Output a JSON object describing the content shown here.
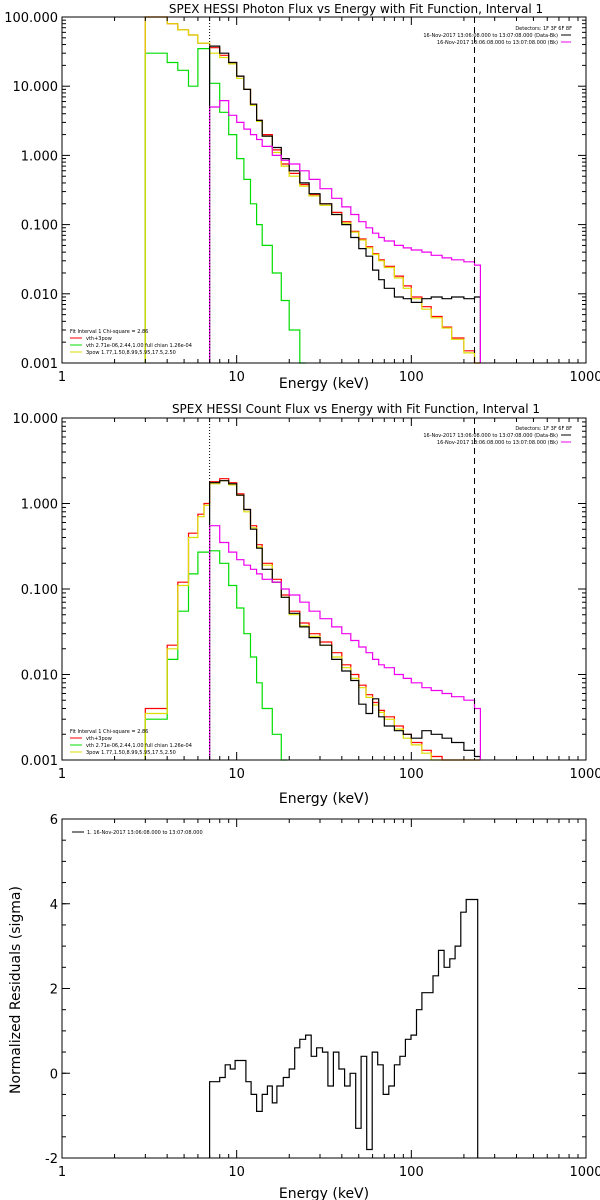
{
  "chart_data": [
    {
      "type": "line",
      "title": "SPEX HESSI Photon Flux vs Energy with Fit Function, Interval 1",
      "xlabel": "Energy (keV)",
      "ylabel": "",
      "xscale": "log",
      "yscale": "log",
      "xlim": [
        1,
        1000
      ],
      "ylim": [
        0.001,
        100
      ],
      "x_ticks": [
        "1",
        "10",
        "100",
        "1000"
      ],
      "y_ticks": [
        "0.001",
        "0.010",
        "0.100",
        "1.000",
        "10.000",
        "100.000"
      ],
      "grid": false,
      "vlines": [
        {
          "x": 7,
          "style": "dotted"
        },
        {
          "x": 230,
          "style": "dashed"
        }
      ],
      "legend_top_right": {
        "placement": "top-right",
        "lines": [
          "Detectors: 1F 3F 6F 8F",
          "16-Nov-2017 13:06:08.000 to 13:07:08.000 (Data-Bk)",
          "16-Nov-2017 13:06:08.000 to 13:07:08.000 (Bk)"
        ]
      },
      "legend_bottom_left": {
        "placement": "bottom-left",
        "lines": [
          "Fit Interval 1    Chi-square = 2.86",
          "vth+3pow",
          "vth 2.71e-06,2.44,1.00   full chian 1.26e-04",
          "3pow 1.77,1.50,8.99,5.95,17.5,2.50"
        ]
      },
      "series": [
        {
          "name": "vth+3pow",
          "color": "#ff0000",
          "x": [
            3,
            3.5,
            4,
            4.6,
            5.3,
            6,
            7,
            8,
            9,
            10,
            11,
            12,
            13,
            14,
            16,
            18,
            20,
            23,
            26,
            30,
            35,
            40,
            45,
            50,
            55,
            60,
            65,
            70,
            80,
            90,
            100,
            115,
            130,
            150,
            170,
            200,
            230
          ],
          "y": [
            100,
            100,
            80,
            65,
            55,
            42,
            36,
            28,
            22,
            14,
            9,
            5.5,
            3.2,
            2,
            1.2,
            0.75,
            0.55,
            0.38,
            0.27,
            0.2,
            0.15,
            0.11,
            0.08,
            0.062,
            0.048,
            0.038,
            0.031,
            0.025,
            0.018,
            0.013,
            0.009,
            0.0065,
            0.0047,
            0.0033,
            0.0023,
            0.0015,
            0.001
          ]
        },
        {
          "name": "vth",
          "color": "#00dd00",
          "x": [
            3,
            3.5,
            4,
            4.6,
            5.3,
            6,
            7,
            8,
            9,
            10,
            11,
            12,
            13,
            14,
            16,
            18,
            20,
            23
          ],
          "y": [
            30,
            30,
            22,
            17,
            10,
            35,
            11,
            4.2,
            2.0,
            0.9,
            0.45,
            0.2,
            0.1,
            0.05,
            0.02,
            0.008,
            0.003,
            0.001
          ]
        },
        {
          "name": "3pow",
          "color": "#dddd00",
          "x": [
            3,
            3.5,
            4,
            4.6,
            5.3,
            6,
            7,
            8,
            9,
            10,
            11,
            12,
            13,
            14,
            16,
            18,
            20,
            23,
            26,
            30,
            35,
            40,
            45,
            50,
            55,
            60,
            65,
            70,
            80,
            90,
            100,
            115,
            130,
            150,
            170,
            200,
            230
          ],
          "y": [
            100,
            100,
            80,
            65,
            55,
            42,
            30,
            26,
            21,
            13,
            9,
            5.3,
            3.1,
            1.9,
            1.1,
            0.7,
            0.5,
            0.36,
            0.26,
            0.19,
            0.14,
            0.105,
            0.078,
            0.06,
            0.046,
            0.037,
            0.03,
            0.024,
            0.017,
            0.012,
            0.0085,
            0.006,
            0.0045,
            0.0032,
            0.0022,
            0.0014,
            0.001
          ]
        },
        {
          "name": "Data-Bk",
          "color": "#000000",
          "x": [
            7,
            8,
            9,
            10,
            11,
            12,
            13,
            14,
            16,
            18,
            20,
            23,
            26,
            30,
            35,
            40,
            45,
            50,
            55,
            60,
            65,
            70,
            80,
            90,
            100,
            115,
            130,
            150,
            170,
            200,
            230
          ],
          "y": [
            38,
            30,
            22,
            14,
            9,
            5.5,
            3.2,
            1.9,
            1.3,
            0.9,
            0.6,
            0.4,
            0.28,
            0.2,
            0.14,
            0.1,
            0.065,
            0.045,
            0.035,
            0.022,
            0.016,
            0.012,
            0.009,
            0.0085,
            0.0075,
            0.0085,
            0.009,
            0.0085,
            0.009,
            0.0085,
            0.009
          ]
        },
        {
          "name": "Bk",
          "color": "#ee00ee",
          "x": [
            7,
            8,
            9,
            10,
            11,
            12,
            13,
            14,
            16,
            18,
            20,
            23,
            26,
            30,
            35,
            40,
            45,
            50,
            55,
            60,
            65,
            70,
            80,
            90,
            100,
            115,
            130,
            150,
            170,
            200,
            230
          ],
          "y": [
            5,
            6.2,
            3.8,
            3,
            2.4,
            2,
            1.7,
            1.35,
            1.0,
            0.85,
            0.75,
            0.6,
            0.45,
            0.33,
            0.24,
            0.18,
            0.14,
            0.11,
            0.09,
            0.075,
            0.065,
            0.058,
            0.05,
            0.046,
            0.043,
            0.04,
            0.036,
            0.033,
            0.031,
            0.029,
            0.026
          ]
        }
      ]
    },
    {
      "type": "line",
      "title": "SPEX HESSI Count Flux vs Energy with Fit Function, Interval 1",
      "xlabel": "Energy (keV)",
      "ylabel": "",
      "xscale": "log",
      "yscale": "log",
      "xlim": [
        1,
        1000
      ],
      "ylim": [
        0.001,
        10
      ],
      "x_ticks": [
        "1",
        "10",
        "100",
        "1000"
      ],
      "y_ticks": [
        "0.001",
        "0.010",
        "0.100",
        "1.000",
        "10.000"
      ],
      "grid": false,
      "vlines": [
        {
          "x": 7,
          "style": "dotted"
        },
        {
          "x": 230,
          "style": "dashed"
        }
      ],
      "legend_top_right": {
        "placement": "top-right",
        "lines": [
          "Detectors: 1F 3F 6F 8F",
          "16-Nov-2017 13:06:08.000 to 13:07:08.000 (Data-Bk)",
          "16-Nov-2017 13:06:08.000 to 13:07:08.000 (Bk)"
        ]
      },
      "legend_bottom_left": {
        "placement": "bottom-left",
        "lines": [
          "Fit Interval 1    Chi-square = 2.86",
          "vth+3pow",
          "vth 2.71e-06,2.44,1.00   full chian 1.26e-04",
          "3pow 1.77,1.50,8.99,5.95,17.5,2.50"
        ]
      },
      "series": [
        {
          "name": "vth+3pow",
          "color": "#ff0000",
          "x": [
            3,
            3.5,
            4,
            4.6,
            5.3,
            6,
            6.5,
            7,
            8,
            9,
            10,
            11,
            12,
            13,
            14,
            16,
            18,
            20,
            23,
            26,
            30,
            35,
            40,
            45,
            50,
            55,
            60,
            65,
            70,
            80,
            90,
            100,
            115,
            130,
            150,
            170,
            200,
            230
          ],
          "y": [
            0.004,
            0.004,
            0.022,
            0.12,
            0.45,
            0.75,
            1.0,
            1.8,
            1.95,
            1.75,
            1.3,
            0.85,
            0.55,
            0.33,
            0.2,
            0.13,
            0.085,
            0.055,
            0.04,
            0.03,
            0.024,
            0.018,
            0.013,
            0.01,
            0.0075,
            0.0058,
            0.0047,
            0.0038,
            0.0032,
            0.0025,
            0.002,
            0.0016,
            0.0013,
            0.0011,
            0.001,
            0.001,
            0.001,
            0.001
          ]
        },
        {
          "name": "vth",
          "color": "#00dd00",
          "x": [
            3,
            3.5,
            4,
            4.6,
            5.3,
            6,
            7,
            8,
            9,
            10,
            11,
            12,
            13,
            14,
            16,
            18
          ],
          "y": [
            0.003,
            0.003,
            0.015,
            0.055,
            0.15,
            0.27,
            0.28,
            0.2,
            0.11,
            0.06,
            0.03,
            0.016,
            0.008,
            0.004,
            0.002,
            0.001
          ]
        },
        {
          "name": "3pow",
          "color": "#dddd00",
          "x": [
            3,
            3.5,
            4,
            4.6,
            5.3,
            6,
            6.5,
            7,
            8,
            9,
            10,
            11,
            12,
            13,
            14,
            16,
            18,
            20,
            23,
            26,
            30,
            35,
            40,
            45,
            50,
            55,
            60,
            65,
            70,
            80,
            90,
            100,
            115,
            130,
            150,
            170,
            200,
            230
          ],
          "y": [
            0.0035,
            0.0035,
            0.02,
            0.11,
            0.4,
            0.7,
            0.95,
            1.7,
            1.85,
            1.65,
            1.25,
            0.8,
            0.52,
            0.31,
            0.19,
            0.12,
            0.08,
            0.05,
            0.037,
            0.028,
            0.022,
            0.016,
            0.012,
            0.009,
            0.007,
            0.0054,
            0.0044,
            0.0036,
            0.003,
            0.0023,
            0.0018,
            0.0015,
            0.0012,
            0.001,
            0.001,
            0.001,
            0.001,
            0.001
          ]
        },
        {
          "name": "Data-Bk",
          "color": "#000000",
          "x": [
            7,
            8,
            9,
            10,
            11,
            12,
            13,
            14,
            16,
            18,
            20,
            23,
            26,
            30,
            35,
            40,
            45,
            50,
            55,
            60,
            65,
            70,
            80,
            90,
            100,
            115,
            130,
            150,
            170,
            200,
            230
          ],
          "y": [
            1.75,
            1.85,
            1.7,
            1.25,
            0.85,
            0.5,
            0.3,
            0.17,
            0.12,
            0.08,
            0.052,
            0.036,
            0.027,
            0.022,
            0.015,
            0.011,
            0.0085,
            0.0045,
            0.0035,
            0.0052,
            0.0032,
            0.0025,
            0.0022,
            0.002,
            0.0018,
            0.0022,
            0.002,
            0.0018,
            0.0016,
            0.0013,
            0.0011
          ]
        },
        {
          "name": "Bk",
          "color": "#ee00ee",
          "x": [
            7,
            8,
            9,
            10,
            11,
            12,
            13,
            14,
            16,
            18,
            20,
            23,
            26,
            30,
            35,
            40,
            45,
            50,
            55,
            60,
            65,
            70,
            80,
            90,
            100,
            115,
            130,
            150,
            170,
            200,
            230
          ],
          "y": [
            0.55,
            0.35,
            0.27,
            0.22,
            0.19,
            0.17,
            0.15,
            0.13,
            0.12,
            0.1,
            0.085,
            0.07,
            0.055,
            0.045,
            0.036,
            0.03,
            0.025,
            0.021,
            0.018,
            0.015,
            0.013,
            0.012,
            0.01,
            0.009,
            0.008,
            0.007,
            0.0065,
            0.006,
            0.0055,
            0.005,
            0.004
          ]
        }
      ]
    },
    {
      "type": "line",
      "title": "",
      "xlabel": "Energy (keV)",
      "ylabel": "Normalized Residuals (sigma)",
      "xscale": "log",
      "yscale": "linear",
      "xlim": [
        1,
        1000
      ],
      "ylim": [
        -2,
        6
      ],
      "x_ticks": [
        "1",
        "10",
        "100",
        "1000"
      ],
      "y_ticks": [
        "-2",
        "0",
        "2",
        "4",
        "6"
      ],
      "grid": false,
      "legend": {
        "placement": "top-left",
        "lines": [
          "1. 16-Nov-2017 13:06:08.000 to 13:07:08.000"
        ]
      },
      "series": [
        {
          "name": "1. 16-Nov-2017 13:06:08.000 to 13:07:08.000",
          "color": "#000000",
          "x": [
            7,
            7.5,
            8,
            8.6,
            9.2,
            9.8,
            10.5,
            11.3,
            12.1,
            13,
            14,
            15,
            16,
            17,
            18.5,
            20,
            21.5,
            23,
            24.8,
            26.7,
            28.7,
            31,
            33.3,
            35.8,
            38.5,
            41.5,
            44.6,
            48,
            51.6,
            55.5,
            59.7,
            64.2,
            69,
            74.3,
            80,
            86,
            92.5,
            99.5,
            107,
            115,
            124,
            133,
            143,
            154,
            166,
            178,
            192,
            206,
            222
          ],
          "y": [
            -0.2,
            -0.2,
            -0.1,
            0.2,
            0.1,
            0.3,
            0.3,
            -0.2,
            -0.5,
            -0.9,
            -0.5,
            -0.3,
            -0.7,
            -0.3,
            -0.1,
            0.1,
            0.6,
            0.8,
            0.9,
            0.4,
            0.6,
            0.5,
            -0.3,
            0.5,
            0.1,
            -0.3,
            0.0,
            -1.3,
            0.4,
            -1.8,
            0.5,
            0.2,
            -0.5,
            -0.3,
            0.2,
            0.4,
            0.8,
            0.9,
            1.5,
            1.9,
            1.9,
            2.3,
            2.9,
            2.5,
            2.7,
            3.0,
            3.8,
            4.1,
            4.1
          ]
        }
      ]
    }
  ]
}
